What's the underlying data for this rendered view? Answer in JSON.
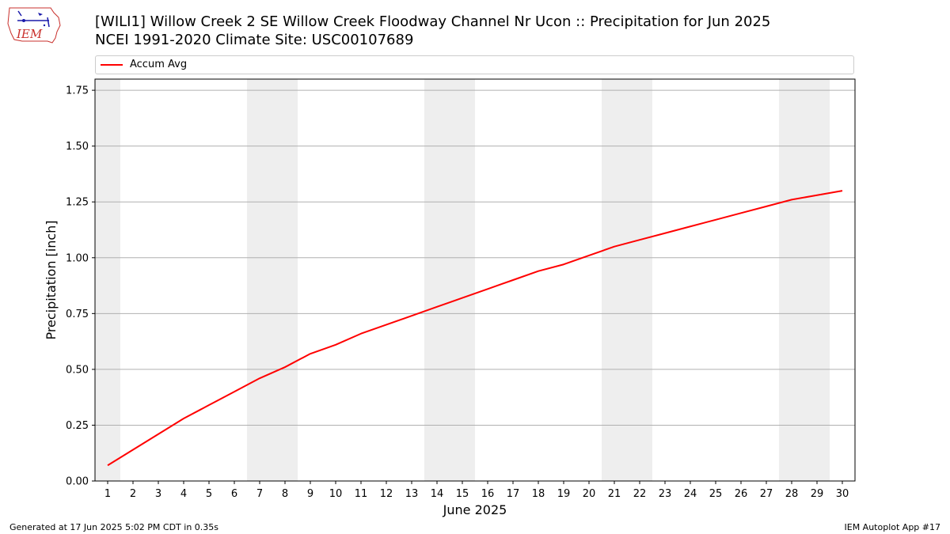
{
  "header": {
    "logo_text": "IEM",
    "title_line1": "[WILI1] Willow Creek 2 SE Willow Creek Floodway Channel Nr Ucon :: Precipitation for Jun 2025",
    "title_line2": "NCEI 1991-2020 Climate Site: USC00107689"
  },
  "footer": {
    "left": "Generated at 17 Jun 2025 5:02 PM CDT in 0.35s",
    "right": "IEM Autoplot App #17"
  },
  "chart_data": {
    "type": "line",
    "title": "[WILI1] Willow Creek 2 SE Willow Creek Floodway Channel Nr Ucon :: Precipitation for Jun 2025",
    "subtitle": "NCEI 1991-2020 Climate Site: USC00107689",
    "xlabel": "June 2025",
    "ylabel": "Precipitation [inch]",
    "x": [
      1,
      2,
      3,
      4,
      5,
      6,
      7,
      8,
      9,
      10,
      11,
      12,
      13,
      14,
      15,
      16,
      17,
      18,
      19,
      20,
      21,
      22,
      23,
      24,
      25,
      26,
      27,
      28,
      29,
      30
    ],
    "xlim": [
      0.5,
      30.5
    ],
    "ylim": [
      0,
      1.8
    ],
    "yticks": [
      "0.00",
      "0.25",
      "0.50",
      "0.75",
      "1.00",
      "1.25",
      "1.50",
      "1.75"
    ],
    "grid": "y",
    "legend_position": "top",
    "weekend_shading": [
      [
        0.5,
        1.5
      ],
      [
        6.5,
        8.5
      ],
      [
        13.5,
        15.5
      ],
      [
        20.5,
        22.5
      ],
      [
        27.5,
        29.5
      ]
    ],
    "series": [
      {
        "name": "Accum Avg",
        "color": "#ff0000",
        "values": [
          0.07,
          0.14,
          0.21,
          0.28,
          0.34,
          0.4,
          0.46,
          0.51,
          0.57,
          0.61,
          0.66,
          0.7,
          0.74,
          0.78,
          0.82,
          0.86,
          0.9,
          0.94,
          0.97,
          1.01,
          1.05,
          1.08,
          1.11,
          1.14,
          1.17,
          1.2,
          1.23,
          1.26,
          1.28,
          1.3
        ]
      }
    ]
  }
}
